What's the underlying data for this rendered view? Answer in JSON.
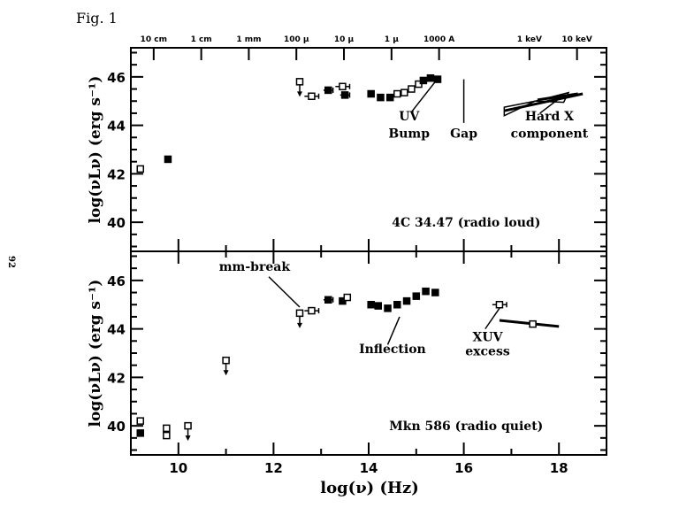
{
  "page": {
    "fig_label": "Fig. 1",
    "page_number": "92"
  },
  "chart_data": {
    "type": "scatter",
    "title": "",
    "xlabel": "log(ν) (Hz)",
    "ylabel": "log(νLν) (erg s⁻¹)",
    "xlim": [
      9,
      19
    ],
    "x_ticks": [
      10,
      12,
      14,
      16,
      18
    ],
    "top_axis_labels": [
      {
        "label": "10 cm",
        "x": 9.48
      },
      {
        "label": "1 cm",
        "x": 10.48
      },
      {
        "label": "1 mm",
        "x": 11.48
      },
      {
        "label": "100 μ",
        "x": 12.48
      },
      {
        "label": "10 μ",
        "x": 13.48
      },
      {
        "label": "1 μ",
        "x": 14.48
      },
      {
        "label": "1000 A",
        "x": 15.48
      },
      {
        "label": "1 keV",
        "x": 17.38
      },
      {
        "label": "10 keV",
        "x": 18.38
      }
    ],
    "panels": [
      {
        "name": "4C 34.47 (radio loud)",
        "ylim": [
          38.8,
          47.2
        ],
        "y_ticks": [
          40,
          42,
          44,
          46
        ],
        "points": [
          {
            "x": 9.2,
            "y": 42.2,
            "marker": "open-square"
          },
          {
            "x": 9.78,
            "y": 42.6,
            "marker": "filled-square"
          },
          {
            "x": 12.55,
            "y": 45.8,
            "marker": "open-square",
            "upper_limit": true
          },
          {
            "x": 12.8,
            "y": 45.2,
            "marker": "open-square",
            "xerr": 0.15
          },
          {
            "x": 13.15,
            "y": 45.45,
            "marker": "filled-square",
            "xerr": 0.1
          },
          {
            "x": 13.45,
            "y": 45.6,
            "marker": "open-square",
            "xerr": 0.15
          },
          {
            "x": 13.5,
            "y": 45.25,
            "marker": "filled-square",
            "xerr": 0.1
          },
          {
            "x": 14.05,
            "y": 45.3,
            "marker": "filled-square"
          },
          {
            "x": 14.25,
            "y": 45.15,
            "marker": "filled-square"
          },
          {
            "x": 14.45,
            "y": 45.15,
            "marker": "filled-square"
          },
          {
            "x": 14.6,
            "y": 45.3,
            "marker": "open-square"
          },
          {
            "x": 14.75,
            "y": 45.35,
            "marker": "open-square"
          },
          {
            "x": 14.9,
            "y": 45.5,
            "marker": "open-square"
          },
          {
            "x": 15.05,
            "y": 45.7,
            "marker": "open-square"
          },
          {
            "x": 15.15,
            "y": 45.85,
            "marker": "filled-square"
          },
          {
            "x": 15.3,
            "y": 45.95,
            "marker": "filled-square"
          },
          {
            "x": 15.45,
            "y": 45.9,
            "marker": "filled-square"
          }
        ],
        "powerlaw_lines": [
          {
            "x": [
              16.85,
              18.5
            ],
            "y": [
              44.6,
              45.3
            ]
          },
          {
            "x": [
              17.55,
              18.4
            ],
            "y": [
              45.05,
              45.3
            ]
          }
        ],
        "annotations": [
          {
            "text": "UV",
            "x": 14.85,
            "y": 44.2
          },
          {
            "text": "Bump",
            "x": 14.85,
            "y": 43.5
          },
          {
            "text": "Gap",
            "x": 16.0,
            "y": 43.5
          },
          {
            "text": "Hard X",
            "x": 17.8,
            "y": 44.2
          },
          {
            "text": "component",
            "x": 17.8,
            "y": 43.5
          }
        ]
      },
      {
        "name": "Mkn 586 (radio quiet)",
        "ylim": [
          38.8,
          47.2
        ],
        "y_ticks": [
          40,
          42,
          44,
          46
        ],
        "points": [
          {
            "x": 9.2,
            "y": 40.2,
            "marker": "open-square"
          },
          {
            "x": 9.2,
            "y": 39.7,
            "marker": "filled-square"
          },
          {
            "x": 9.75,
            "y": 39.9,
            "marker": "open-square"
          },
          {
            "x": 9.75,
            "y": 39.6,
            "marker": "open-square"
          },
          {
            "x": 10.2,
            "y": 40.0,
            "marker": "open-square",
            "upper_limit": true
          },
          {
            "x": 11.0,
            "y": 42.7,
            "marker": "open-square",
            "upper_limit": true
          },
          {
            "x": 12.55,
            "y": 44.65,
            "marker": "open-square",
            "upper_limit": true
          },
          {
            "x": 12.8,
            "y": 44.75,
            "marker": "open-square",
            "xerr": 0.15
          },
          {
            "x": 13.15,
            "y": 45.2,
            "marker": "filled-square",
            "xerr": 0.1
          },
          {
            "x": 13.45,
            "y": 45.15,
            "marker": "filled-square"
          },
          {
            "x": 13.55,
            "y": 45.3,
            "marker": "open-square"
          },
          {
            "x": 14.05,
            "y": 45.0,
            "marker": "filled-square"
          },
          {
            "x": 14.2,
            "y": 44.95,
            "marker": "filled-square"
          },
          {
            "x": 14.4,
            "y": 44.85,
            "marker": "filled-square"
          },
          {
            "x": 14.6,
            "y": 45.0,
            "marker": "filled-square"
          },
          {
            "x": 14.8,
            "y": 45.15,
            "marker": "filled-square"
          },
          {
            "x": 15.0,
            "y": 45.35,
            "marker": "filled-square"
          },
          {
            "x": 15.2,
            "y": 45.55,
            "marker": "filled-square"
          },
          {
            "x": 15.4,
            "y": 45.5,
            "marker": "filled-square"
          },
          {
            "x": 16.75,
            "y": 45.0,
            "marker": "open-square",
            "xerr": 0.15
          },
          {
            "x": 17.45,
            "y": 44.2,
            "marker": "open-square"
          }
        ],
        "powerlaw_lines": [
          {
            "x": [
              16.75,
              18.0
            ],
            "y": [
              44.35,
              44.1
            ]
          }
        ],
        "annotations": [
          {
            "text": "mm-break",
            "x": 11.6,
            "y": 46.4
          },
          {
            "text": "Inflection",
            "x": 14.5,
            "y": 43.0
          },
          {
            "text": "XUV",
            "x": 16.5,
            "y": 43.5
          },
          {
            "text": "excess",
            "x": 16.5,
            "y": 42.9
          }
        ]
      }
    ]
  }
}
